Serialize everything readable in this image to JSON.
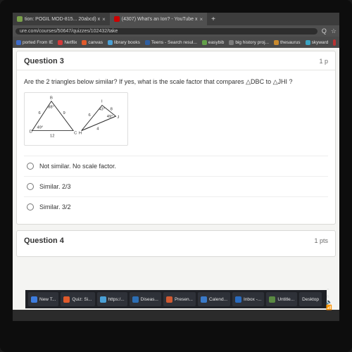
{
  "browser": {
    "tabs": [
      {
        "title": "tion: POGIL MOD-815... 20abcd) x",
        "fav": "#7aa14a"
      },
      {
        "title": "(4307) What's an Ion? - YouTube x",
        "fav": "#cc0000"
      }
    ],
    "url": "ure.com/courses/50647/quizzes/102432/take",
    "addrIcons": {
      "search": "Q",
      "star": "☆"
    },
    "bookmarks": [
      {
        "label": "ported From IE",
        "color": "#3d6bc9"
      },
      {
        "label": "Netflix",
        "color": "#d43a3a"
      },
      {
        "label": "canvas",
        "color": "#e05a2b"
      },
      {
        "label": "library books",
        "color": "#4aa0d6"
      },
      {
        "label": "Teens - Search resul...",
        "color": "#2e5ea0"
      },
      {
        "label": "easybib",
        "color": "#63a04a"
      },
      {
        "label": "big history proj...",
        "color": "#7c7c7c"
      },
      {
        "label": "thesaurus",
        "color": "#c98a2e"
      },
      {
        "label": "skyward",
        "color": "#3aa3c2"
      }
    ]
  },
  "quiz": {
    "q3": {
      "title": "Question 3",
      "points": "1 p",
      "prompt": "Are the 2 triangles below similar? If yes, what is the scale factor that compares △DBC to △JHI  ?",
      "figure": {
        "triDBC": {
          "vertices": {
            "D": "D",
            "B": "B",
            "C": "C"
          },
          "sides": {
            "DB": "6",
            "BC": "9",
            "DC": "12"
          },
          "angles": {
            "D": "49°",
            "B": "88°"
          }
        },
        "triJHI": {
          "vertices": {
            "J": "J",
            "H": "H",
            "I": "I"
          },
          "sides": {
            "HJ": "4",
            "HI": "6",
            "IJ": "8"
          },
          "angles": {
            "J": "49°",
            "I": "43°"
          }
        }
      },
      "options": [
        "Not similar. No scale factor.",
        "Similar. 2/3",
        "Similar. 3/2"
      ]
    },
    "q4": {
      "title": "Question 4",
      "points": "1 pts"
    }
  },
  "taskbar": {
    "left": [
      {
        "label": "New T...",
        "color": "#3d7de0"
      },
      {
        "label": "Quiz: Si...",
        "color": "#e05a2b"
      },
      {
        "label": "https:/...",
        "color": "#4aa0d6"
      },
      {
        "label": "Diseas...",
        "color": "#2d6fb5"
      },
      {
        "label": "Presen...",
        "color": "#d05a32"
      },
      {
        "label": "Calend...",
        "color": "#3a7ac9"
      },
      {
        "label": "Inbox -...",
        "color": "#2a6cc0"
      },
      {
        "label": "Untitle...",
        "color": "#5a8a42"
      }
    ],
    "right": {
      "desktop": "Desktop",
      "tray": "⌃  ∧  🔈  📶"
    }
  }
}
